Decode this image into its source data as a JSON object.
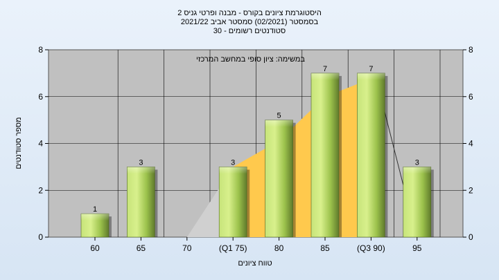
{
  "chart_data": {
    "type": "bar",
    "title": [
      "היסטוגרמת ציונים בקורס - מבנה ופרטי גניס 2",
      "בסמסטר  (02/2021)  סמסטר אביב 2021/22",
      "סטודנטים רשומים - 30"
    ],
    "annotation": "במשימה: ציון סופי במחשב המרכזי",
    "xlabel": "טווח ציונים",
    "ylabel": "מספר סטודנטים",
    "categories": [
      "60",
      "65",
      "70",
      "(Q1 75)",
      "80",
      "85",
      "(Q3 90)",
      "95"
    ],
    "values": [
      1,
      3,
      0,
      3,
      5,
      7,
      7,
      3
    ],
    "ylim": [
      0,
      8
    ],
    "yticks": [
      0,
      2,
      4,
      6,
      8
    ],
    "yticks_right": true,
    "grid": true,
    "colors": {
      "plot_bg": "#c0c0c0",
      "bar_light": "#d8f08c",
      "bar_mid": "#9cc24c",
      "bar_dark": "#5f7a2b",
      "iqr_fill": "#ffc94d",
      "lower_whisker_fill": "#d0d0d0"
    }
  }
}
